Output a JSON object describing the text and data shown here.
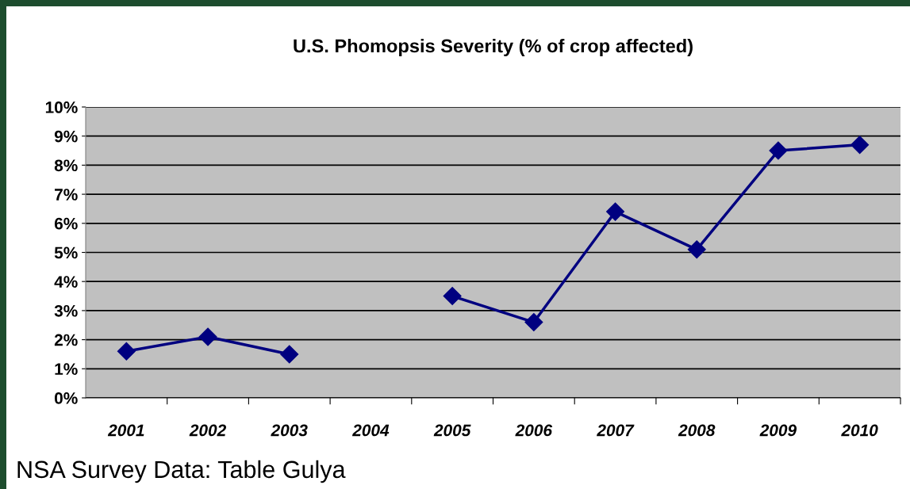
{
  "chart_data": {
    "type": "line",
    "title": "U.S. Phomopsis Severity (% of crop affected)",
    "categories": [
      "2001",
      "2002",
      "2003",
      "2004",
      "2005",
      "2006",
      "2007",
      "2008",
      "2009",
      "2010"
    ],
    "series": [
      {
        "color": "#000080",
        "values": [
          1.6,
          2.1,
          1.5,
          null,
          3.5,
          2.6,
          6.4,
          5.1,
          8.5,
          8.7
        ]
      }
    ],
    "ylim": [
      0,
      10
    ],
    "yticks": [
      {
        "value": 0,
        "label": "0%"
      },
      {
        "value": 1,
        "label": "1%"
      },
      {
        "value": 2,
        "label": "2%"
      },
      {
        "value": 3,
        "label": "3%"
      },
      {
        "value": 4,
        "label": "4%"
      },
      {
        "value": 5,
        "label": "5%"
      },
      {
        "value": 6,
        "label": "6%"
      },
      {
        "value": 7,
        "label": "7%"
      },
      {
        "value": 8,
        "label": "8%"
      },
      {
        "value": 9,
        "label": "9%"
      },
      {
        "value": 10,
        "label": "10%"
      }
    ],
    "grid": "y",
    "marker": "diamond",
    "line_style": "solid",
    "legend": false,
    "annotations": [
      "NSA Survey Data: Table Gulya"
    ]
  }
}
